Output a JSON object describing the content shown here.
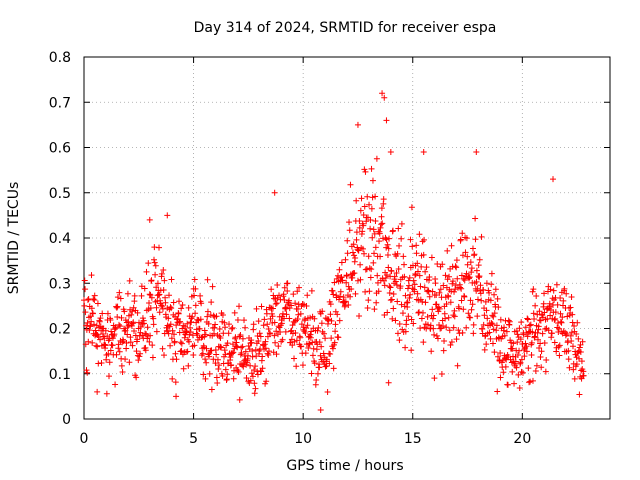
{
  "chart_data": {
    "type": "scatter",
    "title": "Day 314 of 2024, SRMTID for receiver espa",
    "xlabel": "GPS time / hours",
    "ylabel": "SRMTID / TECUs",
    "xlim": [
      0,
      24
    ],
    "ylim": [
      0,
      0.8
    ],
    "xticks": [
      0,
      5,
      10,
      15,
      20
    ],
    "xtick_labels": [
      "0",
      "5",
      "10",
      "15",
      "20"
    ],
    "yticks": [
      0,
      0.1,
      0.2,
      0.3,
      0.4,
      0.5,
      0.6,
      0.7,
      0.8
    ],
    "ytick_labels": [
      "0",
      "0.1",
      "0.2",
      "0.3",
      "0.4",
      "0.5",
      "0.6",
      "0.7",
      "0.8"
    ],
    "grid": true,
    "marker": "+",
    "series_color": "#ff0000",
    "envelope": {
      "description": "approximate typical level (median) and spread of SRMTID vs GPS time",
      "x": [
        0.0,
        0.5,
        1.0,
        1.5,
        2.0,
        2.5,
        3.0,
        3.5,
        4.0,
        4.5,
        5.0,
        5.5,
        6.0,
        6.5,
        7.0,
        7.5,
        8.0,
        8.5,
        9.0,
        9.5,
        10.0,
        10.5,
        11.0,
        11.5,
        12.0,
        12.5,
        13.0,
        13.5,
        14.0,
        14.5,
        15.0,
        15.5,
        16.0,
        16.5,
        17.0,
        17.5,
        18.0,
        18.5,
        19.0,
        19.5,
        20.0,
        20.5,
        21.0,
        21.5,
        22.0,
        22.5,
        22.8
      ],
      "median": [
        0.22,
        0.2,
        0.16,
        0.18,
        0.2,
        0.19,
        0.25,
        0.26,
        0.2,
        0.18,
        0.21,
        0.18,
        0.17,
        0.16,
        0.15,
        0.14,
        0.15,
        0.2,
        0.25,
        0.22,
        0.2,
        0.17,
        0.15,
        0.25,
        0.33,
        0.38,
        0.4,
        0.4,
        0.3,
        0.28,
        0.3,
        0.3,
        0.22,
        0.25,
        0.28,
        0.3,
        0.3,
        0.22,
        0.18,
        0.15,
        0.16,
        0.18,
        0.2,
        0.22,
        0.2,
        0.15,
        0.1
      ],
      "spread": [
        0.07,
        0.06,
        0.05,
        0.06,
        0.06,
        0.06,
        0.07,
        0.07,
        0.07,
        0.06,
        0.06,
        0.06,
        0.05,
        0.05,
        0.05,
        0.05,
        0.05,
        0.06,
        0.07,
        0.06,
        0.06,
        0.06,
        0.06,
        0.07,
        0.08,
        0.09,
        0.1,
        0.1,
        0.08,
        0.08,
        0.08,
        0.08,
        0.07,
        0.08,
        0.08,
        0.08,
        0.08,
        0.07,
        0.06,
        0.05,
        0.05,
        0.06,
        0.06,
        0.06,
        0.06,
        0.05,
        0.03
      ]
    },
    "notable_points": [
      {
        "x": 3.0,
        "y": 0.44
      },
      {
        "x": 3.8,
        "y": 0.45
      },
      {
        "x": 8.7,
        "y": 0.5
      },
      {
        "x": 12.5,
        "y": 0.65
      },
      {
        "x": 13.6,
        "y": 0.72
      },
      {
        "x": 13.7,
        "y": 0.71
      },
      {
        "x": 13.8,
        "y": 0.66
      },
      {
        "x": 14.0,
        "y": 0.59
      },
      {
        "x": 15.5,
        "y": 0.59
      },
      {
        "x": 17.9,
        "y": 0.59
      },
      {
        "x": 21.4,
        "y": 0.53
      },
      {
        "x": 4.2,
        "y": 0.05
      },
      {
        "x": 10.8,
        "y": 0.02
      },
      {
        "x": 13.9,
        "y": 0.08
      },
      {
        "x": 0.6,
        "y": 0.06
      }
    ]
  }
}
